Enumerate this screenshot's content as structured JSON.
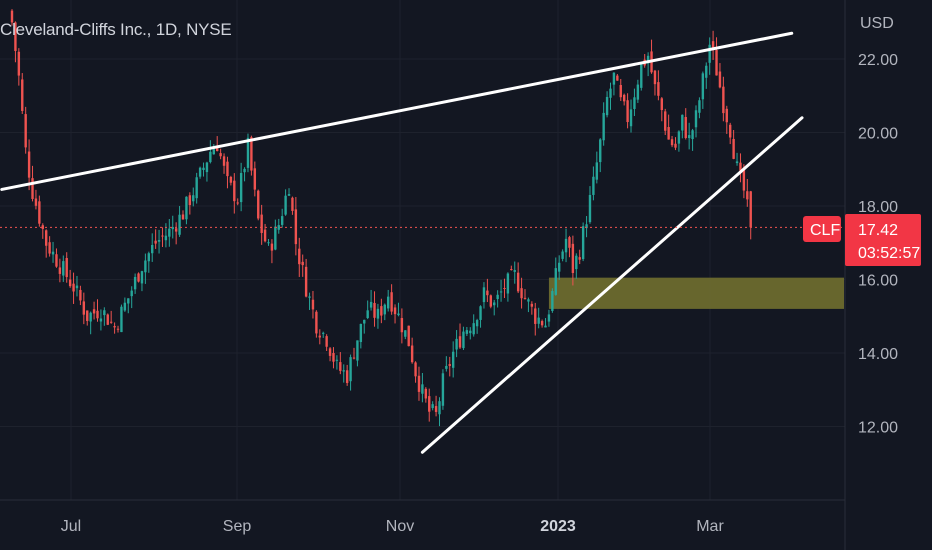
{
  "header": {
    "title": "Cleveland-Cliffs Inc., 1D, NYSE"
  },
  "price_axis": {
    "currency": "USD",
    "ticks": [
      "22.00",
      "20.00",
      "18.00",
      "16.00",
      "14.00",
      "12.00"
    ]
  },
  "time_axis": {
    "labels": [
      "Jul",
      "Sep",
      "Nov",
      "2023",
      "Mar"
    ]
  },
  "last_price": {
    "symbol": "CLF",
    "price": "17.42",
    "countdown": "03:52:57"
  },
  "colors": {
    "background": "#131722",
    "up": "#26a69a",
    "down": "#ef5350",
    "trendline": "#ffffff",
    "zone": "#6b6a2e",
    "price_line": "#ef5350"
  },
  "chart_data": {
    "type": "candlestick",
    "title": "Cleveland-Cliffs Inc., 1D, NYSE",
    "ylabel": "USD",
    "ylim": [
      10.2,
      23.3
    ],
    "yticks": [
      22,
      20,
      18,
      16,
      14,
      12
    ],
    "x_labels": [
      "Jul",
      "Sep",
      "Nov",
      "2023",
      "Mar"
    ],
    "close_path": [
      [
        0,
        23.0
      ],
      [
        2,
        21.5
      ],
      [
        4,
        19.5
      ],
      [
        6,
        18.4
      ],
      [
        10,
        17.0
      ],
      [
        14,
        16.4
      ],
      [
        18,
        15.8
      ],
      [
        22,
        15.0
      ],
      [
        26,
        15.2
      ],
      [
        30,
        14.7
      ],
      [
        34,
        15.5
      ],
      [
        38,
        16.4
      ],
      [
        42,
        17.0
      ],
      [
        46,
        17.3
      ],
      [
        50,
        17.8
      ],
      [
        54,
        18.6
      ],
      [
        58,
        19.5
      ],
      [
        60,
        19.7
      ],
      [
        63,
        18.6
      ],
      [
        66,
        18.2
      ],
      [
        69,
        19.6
      ],
      [
        72,
        17.6
      ],
      [
        75,
        16.8
      ],
      [
        78,
        17.5
      ],
      [
        81,
        18.6
      ],
      [
        83,
        17.0
      ],
      [
        86,
        15.8
      ],
      [
        89,
        14.8
      ],
      [
        92,
        14.4
      ],
      [
        95,
        13.6
      ],
      [
        98,
        13.4
      ],
      [
        101,
        14.4
      ],
      [
        104,
        15.2
      ],
      [
        107,
        15.0
      ],
      [
        110,
        15.6
      ],
      [
        113,
        15.0
      ],
      [
        116,
        14.3
      ],
      [
        118,
        13.5
      ],
      [
        120,
        12.9
      ],
      [
        122,
        12.4
      ],
      [
        124,
        12.3
      ],
      [
        126,
        13.2
      ],
      [
        129,
        14.0
      ],
      [
        132,
        14.6
      ],
      [
        135,
        14.9
      ],
      [
        138,
        15.6
      ],
      [
        141,
        15.3
      ],
      [
        144,
        15.8
      ],
      [
        147,
        16.1
      ],
      [
        150,
        15.5
      ],
      [
        153,
        15.0
      ],
      [
        156,
        14.8
      ],
      [
        158,
        15.6
      ],
      [
        160,
        16.5
      ],
      [
        162,
        17.1
      ],
      [
        164,
        16.3
      ],
      [
        166,
        16.8
      ],
      [
        168,
        17.7
      ],
      [
        170,
        18.6
      ],
      [
        172,
        19.7
      ],
      [
        174,
        20.9
      ],
      [
        176,
        21.5
      ],
      [
        178,
        20.8
      ],
      [
        180,
        20.4
      ],
      [
        182,
        21.1
      ],
      [
        184,
        21.8
      ],
      [
        186,
        22.1
      ],
      [
        188,
        21.2
      ],
      [
        190,
        20.6
      ],
      [
        192,
        19.8
      ],
      [
        194,
        19.6
      ],
      [
        196,
        20.3
      ],
      [
        198,
        19.8
      ],
      [
        200,
        20.4
      ],
      [
        202,
        21.4
      ],
      [
        204,
        22.4
      ],
      [
        206,
        21.7
      ],
      [
        208,
        20.8
      ],
      [
        210,
        20.1
      ],
      [
        212,
        19.0
      ],
      [
        214,
        18.4
      ],
      [
        216,
        17.42
      ]
    ],
    "trendlines": [
      {
        "name": "resistance",
        "from": [
          -3,
          18.45
        ],
        "to": [
          228,
          22.7
        ]
      },
      {
        "name": "support",
        "from": [
          120,
          11.3
        ],
        "to": [
          231,
          20.4
        ]
      }
    ],
    "zone": {
      "y_from": 15.2,
      "y_to": 16.05,
      "x_from": 157
    },
    "last_price": 17.42
  }
}
